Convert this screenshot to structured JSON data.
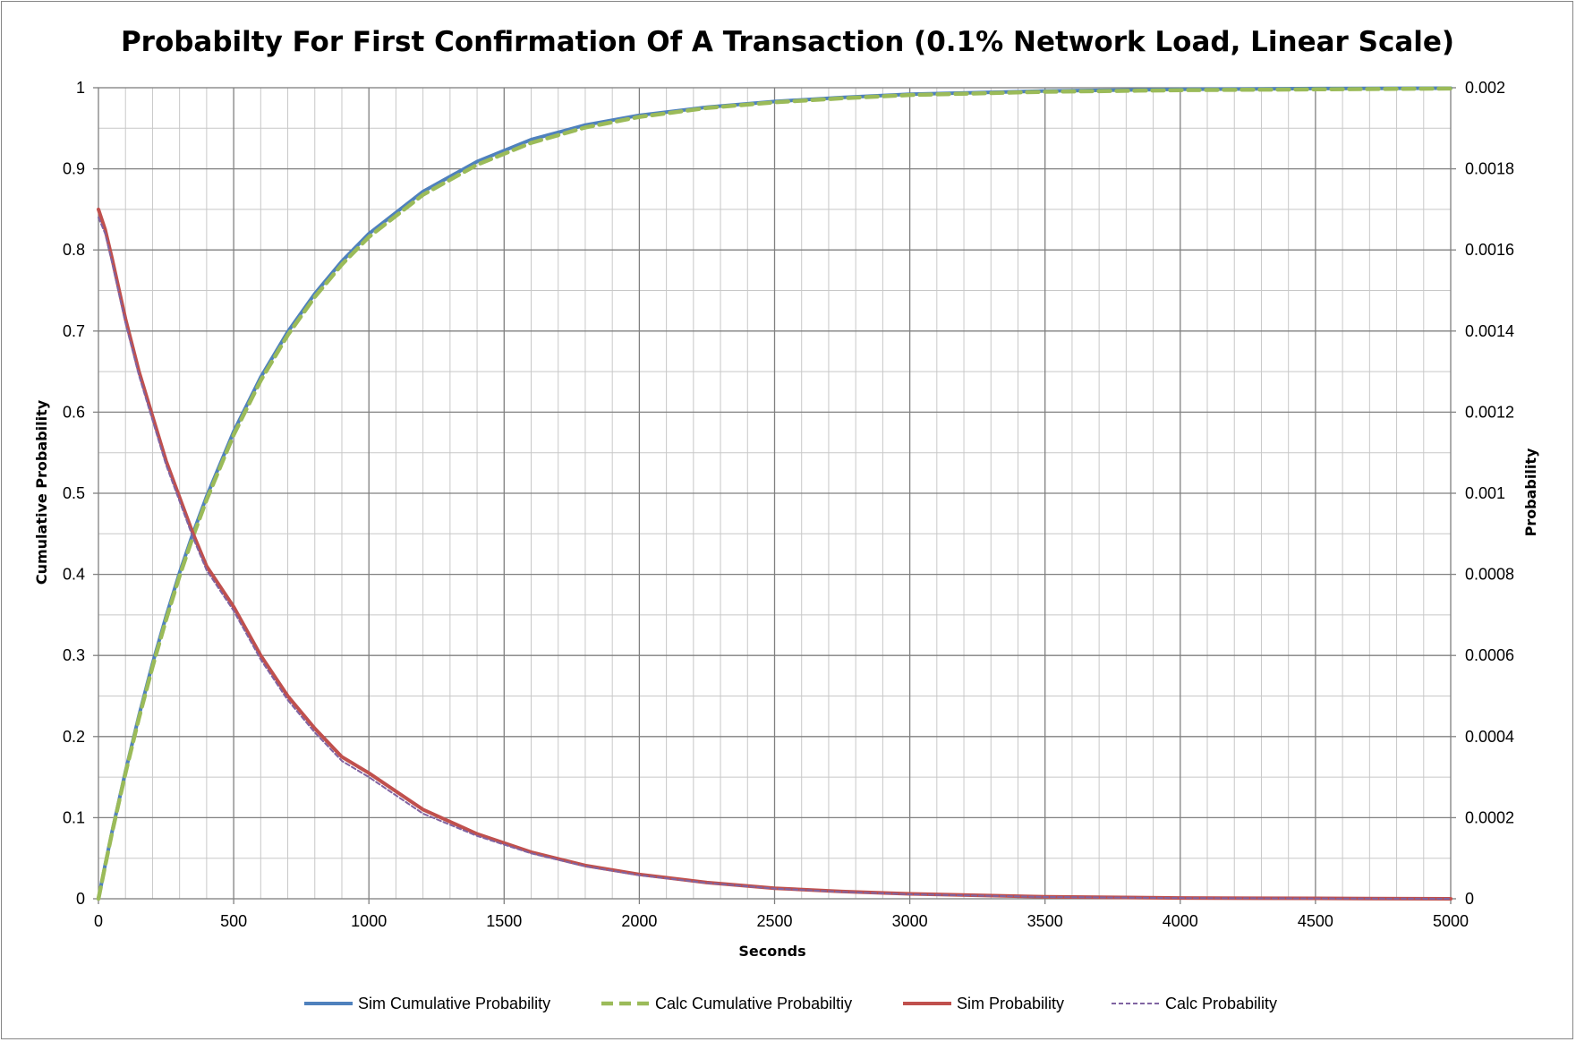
{
  "chart_data": {
    "type": "line",
    "title": "Probabilty For First Confirmation Of A Transaction (0.1% Network Load, Linear Scale)",
    "xlabel": "Seconds",
    "ylabel_left": "Cumulative Probability",
    "ylabel_right": "Probability",
    "xlim": [
      0,
      5000
    ],
    "ylim_left": [
      0,
      1
    ],
    "ylim_right": [
      0,
      0.002
    ],
    "x_ticks": [
      "0",
      "500",
      "1000",
      "1500",
      "2000",
      "2500",
      "3000",
      "3500",
      "4000",
      "4500",
      "5000"
    ],
    "y_left_ticks": [
      "0",
      "0.1",
      "0.2",
      "0.3",
      "0.4",
      "0.5",
      "0.6",
      "0.7",
      "0.8",
      "0.9",
      "1"
    ],
    "y_right_ticks": [
      "0",
      "0.0002",
      "0.0004",
      "0.0006",
      "0.0008",
      "0.001",
      "0.0012",
      "0.0014",
      "0.0016",
      "0.0018",
      "0.002"
    ],
    "grid": true,
    "legend_position": "bottom",
    "x": [
      0,
      25,
      50,
      100,
      150,
      200,
      250,
      300,
      350,
      400,
      500,
      600,
      700,
      800,
      900,
      1000,
      1200,
      1400,
      1600,
      1800,
      2000,
      2250,
      2500,
      2750,
      3000,
      3500,
      4000,
      4500,
      5000
    ],
    "series": [
      {
        "name": "Sim Cumulative Probability",
        "axis": "left",
        "color": "#4f81bd",
        "style": "solid",
        "values": [
          0,
          0.042,
          0.082,
          0.157,
          0.226,
          0.29,
          0.348,
          0.402,
          0.451,
          0.496,
          0.576,
          0.643,
          0.699,
          0.746,
          0.786,
          0.82,
          0.872,
          0.909,
          0.936,
          0.954,
          0.966,
          0.976,
          0.983,
          0.988,
          0.992,
          0.996,
          0.998,
          0.999,
          0.9995
        ]
      },
      {
        "name": "Calc Cumulative Probabiltiy",
        "axis": "left",
        "color": "#9bbb59",
        "style": "dashed",
        "values": [
          0,
          0.041,
          0.081,
          0.155,
          0.223,
          0.286,
          0.344,
          0.398,
          0.447,
          0.492,
          0.572,
          0.639,
          0.695,
          0.742,
          0.782,
          0.816,
          0.868,
          0.905,
          0.932,
          0.951,
          0.964,
          0.975,
          0.982,
          0.987,
          0.991,
          0.995,
          0.997,
          0.998,
          0.999
        ]
      },
      {
        "name": "Sim Probability",
        "axis": "right",
        "color": "#c0504d",
        "style": "solid",
        "values": [
          0.0017,
          0.00165,
          0.00158,
          0.00143,
          0.0013,
          0.00119,
          0.00108,
          0.00099,
          0.0009,
          0.00082,
          0.00072,
          0.0006,
          0.0005,
          0.00042,
          0.00035,
          0.00031,
          0.00022,
          0.00016,
          0.000115,
          8.2e-05,
          6e-05,
          4e-05,
          2.6e-05,
          1.8e-05,
          1.2e-05,
          5e-06,
          2e-06,
          1e-06,
          0
        ]
      },
      {
        "name": "Calc Probability",
        "axis": "right",
        "color": "#8064a2",
        "style": "dotted",
        "values": [
          0.00168,
          0.00164,
          0.00157,
          0.00142,
          0.00129,
          0.00118,
          0.00107,
          0.00098,
          0.00089,
          0.00081,
          0.00071,
          0.00059,
          0.00049,
          0.00041,
          0.00034,
          0.0003,
          0.00021,
          0.000155,
          0.000112,
          8e-05,
          5.8e-05,
          3.9e-05,
          2.5e-05,
          1.7e-05,
          1.1e-05,
          4.5e-06,
          1.8e-06,
          8e-07,
          0
        ]
      }
    ]
  }
}
